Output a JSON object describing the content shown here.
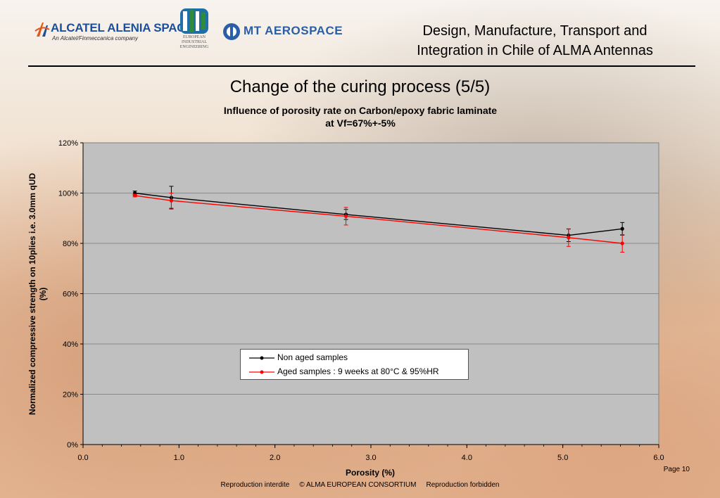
{
  "header": {
    "alcatel_name": "ALCATEL ALENIA SPACE",
    "alcatel_sub": "An Alcatel/Finmeccanica company",
    "eie_text": "EUROPEAN INDUSTRIAL ENGINEERING",
    "mt_text": "MT AEROSPACE",
    "title_line1": "Design, Manufacture, Transport and",
    "title_line2": "Integration in Chile of ALMA Antennas"
  },
  "slide_title": "Change of the curing process (5/5)",
  "chart_data": {
    "type": "scatter",
    "title_line1": "Influence of porosity rate on Carbon/epoxy fabric laminate",
    "title_line2": "at Vf=67%+-5%",
    "xlabel": "Porosity (%)",
    "ylabel_line1": "Normalized compressive strength on 10plies i.e. 3.0mm qUD",
    "ylabel_line2": "(%)",
    "xlim": [
      0,
      6
    ],
    "ylim": [
      0,
      120
    ],
    "x_ticks": [
      "0.0",
      "1.0",
      "2.0",
      "3.0",
      "4.0",
      "5.0",
      "6.0"
    ],
    "y_ticks": [
      "0%",
      "20%",
      "40%",
      "60%",
      "80%",
      "100%",
      "120%"
    ],
    "grid": true,
    "legend_position": "lower-center",
    "series": [
      {
        "name": "Non aged samples",
        "color": "#000000",
        "points": [
          {
            "x": 0.54,
            "y": 100.0,
            "err": 0.8
          },
          {
            "x": 0.92,
            "y": 98.2,
            "err": 4.5
          },
          {
            "x": 2.74,
            "y": 91.5,
            "err": 2.0
          },
          {
            "x": 5.06,
            "y": 83.2,
            "err": 2.5
          },
          {
            "x": 5.62,
            "y": 85.8,
            "err": 2.5
          }
        ]
      },
      {
        "name": "Aged samples : 9 weeks at 80°C & 95%HR",
        "color": "#ff0000",
        "points": [
          {
            "x": 0.54,
            "y": 99.0,
            "err": 0.5
          },
          {
            "x": 0.92,
            "y": 97.0,
            "err": 3.0
          },
          {
            "x": 2.74,
            "y": 90.8,
            "err": 3.5
          },
          {
            "x": 5.06,
            "y": 82.3,
            "err": 3.5
          },
          {
            "x": 5.62,
            "y": 80.0,
            "err": 3.5
          }
        ]
      }
    ]
  },
  "page_number": "Page 10",
  "footer": {
    "left": "Reproduction interdite",
    "center": "© ALMA EUROPEAN CONSORTIUM",
    "right": "Reproduction forbidden"
  }
}
